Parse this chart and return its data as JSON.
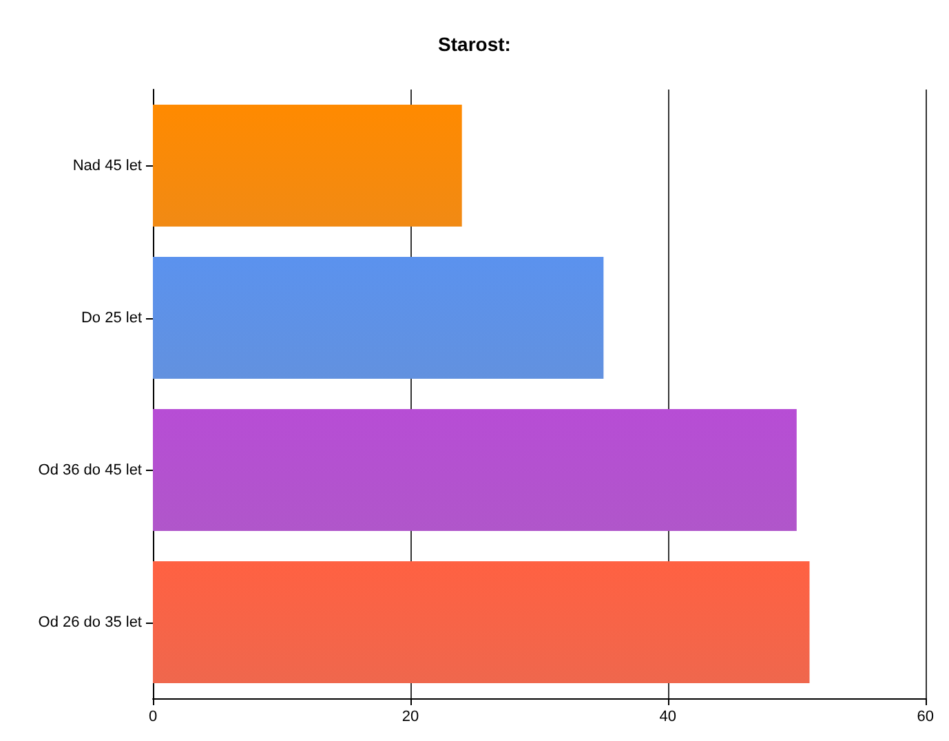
{
  "chart_data": {
    "type": "bar",
    "orientation": "horizontal",
    "title": "Starost:",
    "categories": [
      "Nad 45 let",
      "Do 25 let",
      "Od 36 do 45 let",
      "Od 26 do 35 let"
    ],
    "values": [
      24,
      35,
      50,
      51
    ],
    "colors": [
      "#f08000",
      "#5588dd",
      "#aa48c6",
      "#ee5a3e"
    ],
    "xlim": [
      0,
      60
    ],
    "xticks": [
      0,
      20,
      40,
      60
    ],
    "grid": "x"
  }
}
